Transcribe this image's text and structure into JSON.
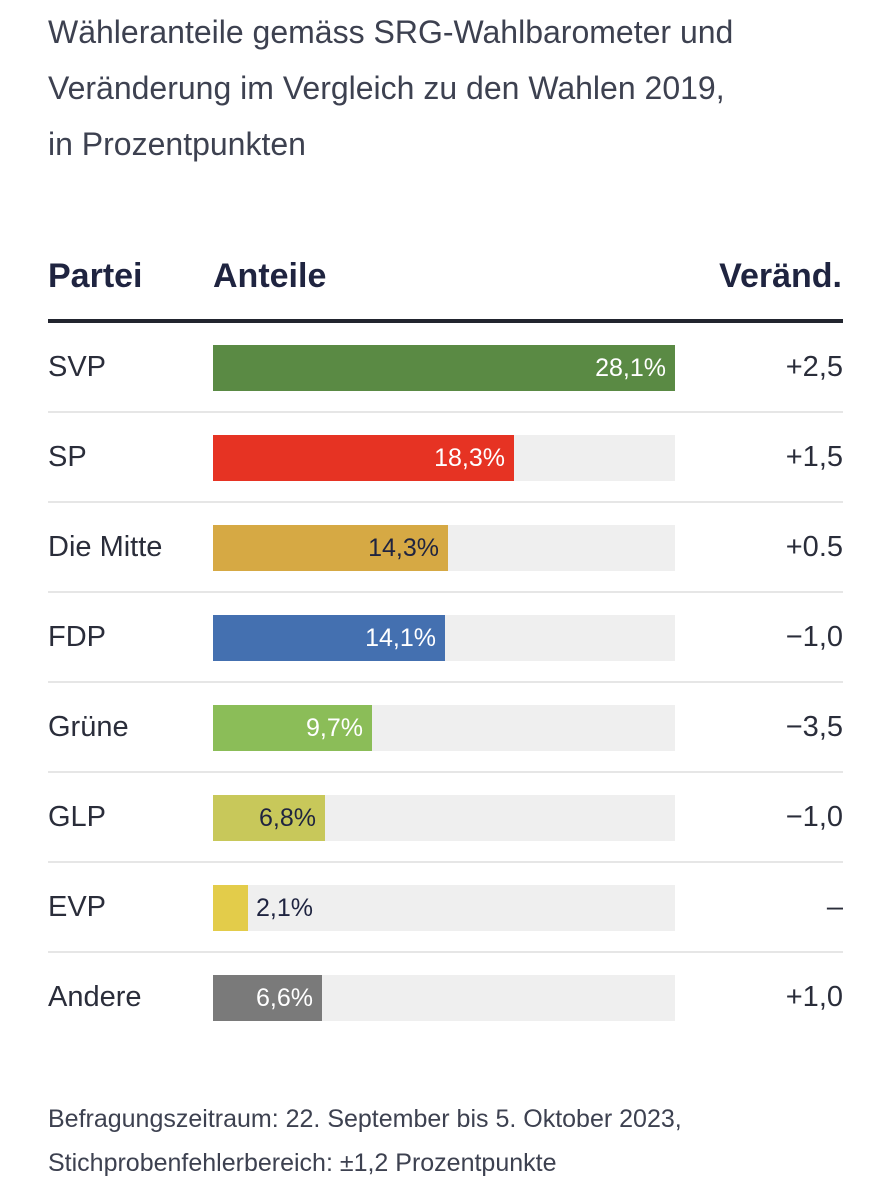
{
  "title_lines": [
    "Wähleranteile gemäss SRG-Wahlbarometer und",
    "Veränderung im Vergleich zu den Wahlen 2019,",
    "in Prozentpunkten"
  ],
  "headers": {
    "party": "Partei",
    "share": "Anteile",
    "change": "Veränd."
  },
  "chart_data": {
    "type": "bar",
    "orientation": "horizontal",
    "title": "Wähleranteile gemäss SRG-Wahlbarometer und Veränderung im Vergleich zu den Wahlen 2019, in Prozentpunkten",
    "categories": [
      "SVP",
      "SP",
      "Die Mitte",
      "FDP",
      "Grüne",
      "GLP",
      "EVP",
      "Andere"
    ],
    "values": [
      28.1,
      18.3,
      14.3,
      14.1,
      9.7,
      6.8,
      2.1,
      6.6
    ],
    "value_labels": [
      "28,1%",
      "18,3%",
      "14,3%",
      "14,1%",
      "9,7%",
      "6,8%",
      "2,1%",
      "6,6%"
    ],
    "changes": [
      "+2,5",
      "+1,5",
      "+0.5",
      "−1,0",
      "−3,5",
      "−1,0",
      "–",
      "+1,0"
    ],
    "colors": [
      "#5a8a44",
      "#e63323",
      "#d6a944",
      "#4470b0",
      "#8bbd58",
      "#c8c85a",
      "#e3cc4a",
      "#7a7a7a"
    ],
    "label_colors": [
      "#ffffff",
      "#ffffff",
      "#1f2440",
      "#ffffff",
      "#ffffff",
      "#1f2440",
      "#1f2440",
      "#ffffff"
    ],
    "xlim": [
      0,
      28.1
    ]
  },
  "footnote_lines": [
    "Befragungszeitraum: 22. September bis 5. Oktober 2023,",
    "Stichprobenfehlerbereich: ±1,2 Prozentpunkte"
  ]
}
